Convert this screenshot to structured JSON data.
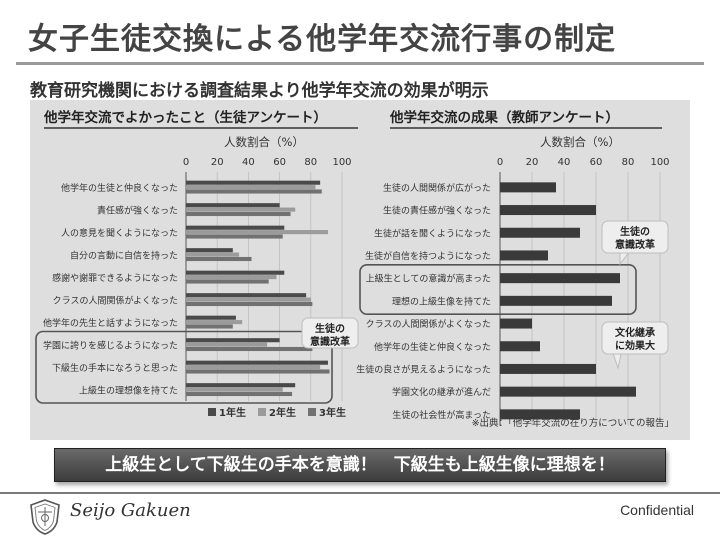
{
  "slide": {
    "title": "女子生徒交換による他学年交流行事の制定",
    "subtitle": "教育研究機関における調査結果より他学年交流の効果が明示",
    "banner": "上級生として下級生の手本を意識！　下級生も上級生像に理想を！",
    "footer": {
      "logo_text": "Seijo Gakuen",
      "confidential": "Confidential"
    },
    "source_note": "※出典：「他学年交流の在り方についての報告」"
  },
  "chart_data": [
    {
      "type": "bar",
      "orientation": "horizontal",
      "title": "他学年交流でよかったこと（生徒アンケート）",
      "xlabel": "人数割合（%）",
      "xlim": [
        0,
        100
      ],
      "ticks": [
        0,
        20,
        40,
        60,
        80,
        100
      ],
      "categories": [
        "他学年の生徒と仲良くなった",
        "責任感が強くなった",
        "人の意見を聞くようになった",
        "自分の言動に自信を持った",
        "感謝や謝罪できるようになった",
        "クラスの人間関係がよくなった",
        "他学年の先生と話すようになった",
        "学園に誇りを感じるようになった",
        "下級生の手本になろうと思った",
        "上級生の理想像を持てた"
      ],
      "series": [
        {
          "name": "1年生",
          "color": "#4a4a4a",
          "values": [
            86,
            60,
            63,
            30,
            63,
            77,
            32,
            60,
            91,
            70
          ]
        },
        {
          "name": "2年生",
          "color": "#9b9b9b",
          "values": [
            83,
            70,
            91,
            34,
            58,
            80,
            36,
            52,
            86,
            62
          ]
        },
        {
          "name": "3年生",
          "color": "#717171",
          "values": [
            87,
            67,
            62,
            42,
            53,
            81,
            30,
            81,
            92,
            68
          ]
        }
      ],
      "legend": "bottom",
      "annotation": "生徒の\n意識改革",
      "highlight_categories": [
        "学園に誇りを感じるようになった",
        "下級生の手本になろうと思った",
        "上級生の理想像を持てた"
      ]
    },
    {
      "type": "bar",
      "orientation": "horizontal",
      "title": "他学年交流の成果（教師アンケート）",
      "xlabel": "人数割合（%）",
      "xlim": [
        0,
        100
      ],
      "ticks": [
        0,
        20,
        40,
        60,
        80,
        100
      ],
      "categories": [
        "生徒の人間関係が広がった",
        "生徒の責任感が強くなった",
        "生徒が話を聞くようになった",
        "生徒が自信を持つようになった",
        "上級生としての意識が高まった",
        "理想の上級生像を持てた",
        "クラスの人間関係がよくなった",
        "他学年の生徒と仲良くなった",
        "生徒の良さが見えるようになった",
        "学園文化の継承が進んだ",
        "生徒の社会性が高まった"
      ],
      "series": [
        {
          "name": "",
          "color": "#3a3a3a",
          "values": [
            35,
            60,
            50,
            30,
            75,
            70,
            20,
            25,
            60,
            85,
            50
          ]
        }
      ],
      "annotations": [
        "生徒の\n意識改革",
        "文化継承\nに効果大"
      ],
      "highlight_categories": [
        "上級生としての意識が高まった",
        "理想の上級生像を持てた"
      ]
    }
  ]
}
